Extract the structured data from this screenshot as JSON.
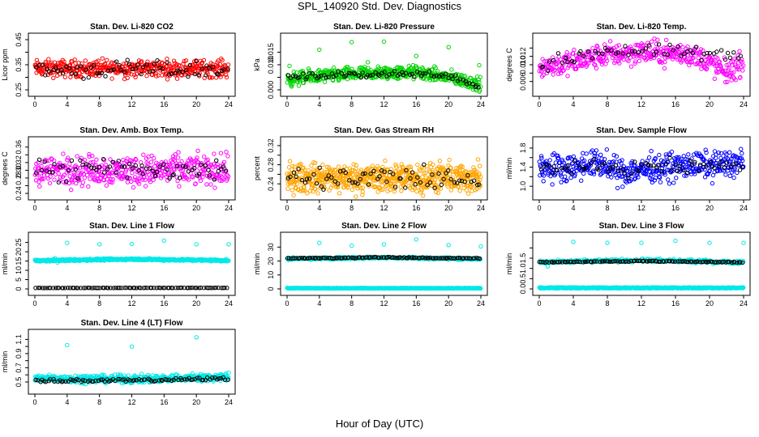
{
  "page": {
    "title": "SPL_140920  Std. Dev. Diagnostics",
    "xlabel": "Hour of Day (UTC)"
  },
  "colors": {
    "red": "#ff0000",
    "green": "#00d400",
    "magenta": "#ff00ff",
    "orange": "#ffa500",
    "blue": "#0000ff",
    "cyan": "#00e8e8",
    "black": "#000000"
  },
  "chart_data": [
    {
      "type": "scatter",
      "title": "Stan. Dev. Li-820 CO2",
      "ylabel": "Licor ppm",
      "xlim": [
        0,
        24
      ],
      "ylim": [
        0.25,
        0.45
      ],
      "xticks": [
        0,
        4,
        8,
        12,
        16,
        20,
        24
      ],
      "yticks": [
        {
          "v": 0.25,
          "label": "0.25"
        },
        {
          "v": 0.3,
          "label": ""
        },
        {
          "v": 0.35,
          "label": "0.35"
        },
        {
          "v": 0.4,
          "label": ""
        },
        {
          "v": 0.45,
          "label": "0.45"
        }
      ],
      "series": [
        {
          "color": "red",
          "count": 420,
          "style": "band",
          "center": [
            [
              0,
              0.335
            ],
            [
              24,
              0.335
            ]
          ],
          "spread": 0.05
        },
        {
          "color": "black",
          "count": 70,
          "style": "band",
          "center": [
            [
              0,
              0.33
            ],
            [
              24,
              0.33
            ]
          ],
          "spread": 0.05
        }
      ]
    },
    {
      "type": "scatter",
      "title": "Stan. Dev. Li-820 Pressure",
      "ylabel": "kPa",
      "xlim": [
        0,
        24
      ],
      "ylim": [
        0,
        0.02
      ],
      "xticks": [
        0,
        4,
        8,
        12,
        16,
        20,
        24
      ],
      "yticks": [
        {
          "v": 0.0,
          "label": "0.000"
        },
        {
          "v": 0.005,
          "label": ""
        },
        {
          "v": 0.01,
          "label": "0.010"
        },
        {
          "v": 0.015,
          "label": "0.015"
        }
      ],
      "series": [
        {
          "color": "green",
          "count": 500,
          "style": "band",
          "center": [
            [
              0,
              0.004
            ],
            [
              4,
              0.0055
            ],
            [
              10,
              0.0065
            ],
            [
              16,
              0.007
            ],
            [
              20,
              0.005
            ],
            [
              24,
              0.002
            ]
          ],
          "spread": 0.004
        },
        {
          "color": "black",
          "count": 80,
          "style": "band",
          "center": [
            [
              0,
              0.005
            ],
            [
              12,
              0.0065
            ],
            [
              20,
              0.006
            ],
            [
              24,
              0.001
            ]
          ],
          "spread": 0.002
        },
        {
          "color": "green",
          "style": "points",
          "points": [
            [
              0.3,
              0.0095
            ],
            [
              4,
              0.016
            ],
            [
              8,
              0.019
            ],
            [
              10,
              0.011
            ],
            [
              12,
              0.0192
            ],
            [
              16,
              0.0135
            ],
            [
              20,
              0.017
            ],
            [
              23.8,
              0.0098
            ]
          ]
        }
      ]
    },
    {
      "type": "scatter",
      "title": "Stan. Dev. Li-820 Temp.",
      "ylabel": "degrees C",
      "xlim": [
        0,
        24
      ],
      "ylim": [
        0.004,
        0.016
      ],
      "xticks": [
        0,
        4,
        8,
        12,
        16,
        20,
        24
      ],
      "yticks": [
        {
          "v": 0.006,
          "label": "0.006"
        },
        {
          "v": 0.008,
          "label": ""
        },
        {
          "v": 0.01,
          "label": "0.010"
        },
        {
          "v": 0.012,
          "label": "0.012"
        },
        {
          "v": 0.014,
          "label": ""
        }
      ],
      "series": [
        {
          "color": "magenta",
          "count": 430,
          "style": "band",
          "center": [
            [
              0,
              0.0095
            ],
            [
              4,
              0.0105
            ],
            [
              8,
              0.0125
            ],
            [
              12,
              0.013
            ],
            [
              18,
              0.0125
            ],
            [
              20,
              0.0105
            ],
            [
              22,
              0.008
            ],
            [
              24,
              0.0105
            ]
          ],
          "spread": 0.0042
        },
        {
          "color": "black",
          "count": 60,
          "style": "band",
          "center": [
            [
              0,
              0.0095
            ],
            [
              7,
              0.0135
            ],
            [
              12,
              0.013
            ],
            [
              17,
              0.013
            ],
            [
              21,
              0.012
            ],
            [
              24,
              0.012
            ]
          ],
          "spread": 0.0025
        }
      ]
    },
    {
      "type": "scatter",
      "title": "Stan. Dev. Amb. Box Temp.",
      "ylabel": "degrees C",
      "xlim": [
        0,
        24
      ],
      "ylim": [
        0.24,
        0.37
      ],
      "xticks": [
        0,
        4,
        8,
        12,
        16,
        20,
        24
      ],
      "yticks": [
        {
          "v": 0.24,
          "label": "0.24"
        },
        {
          "v": 0.26,
          "label": ""
        },
        {
          "v": 0.28,
          "label": "0.28"
        },
        {
          "v": 0.3,
          "label": "0.30"
        },
        {
          "v": 0.32,
          "label": "0.32"
        },
        {
          "v": 0.34,
          "label": ""
        },
        {
          "v": 0.36,
          "label": "0.36"
        }
      ],
      "series": [
        {
          "color": "magenta",
          "count": 420,
          "style": "band",
          "center": [
            [
              0,
              0.3
            ],
            [
              24,
              0.3
            ]
          ],
          "spread": 0.058
        },
        {
          "color": "black",
          "count": 70,
          "style": "band",
          "center": [
            [
              0,
              0.3
            ],
            [
              24,
              0.3
            ]
          ],
          "spread": 0.05
        }
      ]
    },
    {
      "type": "scatter",
      "title": "Stan. Dev. Gas Stream RH",
      "ylabel": "percent",
      "xlim": [
        0,
        24
      ],
      "ylim": [
        0.22,
        0.325
      ],
      "xticks": [
        0,
        4,
        8,
        12,
        16,
        20,
        24
      ],
      "yticks": [
        {
          "v": 0.24,
          "label": "0.24"
        },
        {
          "v": 0.26,
          "label": ""
        },
        {
          "v": 0.28,
          "label": "0.28"
        },
        {
          "v": 0.3,
          "label": ""
        },
        {
          "v": 0.32,
          "label": "0.32"
        }
      ],
      "series": [
        {
          "color": "orange",
          "count": 650,
          "style": "band",
          "center": [
            [
              0,
              0.252
            ],
            [
              24,
              0.252
            ]
          ],
          "spread": 0.045
        },
        {
          "color": "black",
          "count": 70,
          "style": "band",
          "center": [
            [
              0,
              0.25
            ],
            [
              24,
              0.25
            ]
          ],
          "spread": 0.04
        }
      ]
    },
    {
      "type": "scatter",
      "title": "Stan. Dev. Sample Flow",
      "ylabel": "ml/min",
      "xlim": [
        0,
        24
      ],
      "ylim": [
        0.85,
        1.9
      ],
      "xticks": [
        0,
        4,
        8,
        12,
        16,
        20,
        24
      ],
      "yticks": [
        {
          "v": 1.0,
          "label": "1.0"
        },
        {
          "v": 1.2,
          "label": ""
        },
        {
          "v": 1.4,
          "label": "1.4"
        },
        {
          "v": 1.6,
          "label": ""
        },
        {
          "v": 1.8,
          "label": "1.8"
        }
      ],
      "series": [
        {
          "color": "blue",
          "count": 460,
          "style": "band",
          "center": [
            [
              0,
              1.4
            ],
            [
              4,
              1.4
            ],
            [
              7,
              1.5
            ],
            [
              9,
              1.3
            ],
            [
              12,
              1.35
            ],
            [
              16,
              1.42
            ],
            [
              20,
              1.45
            ],
            [
              24,
              1.5
            ]
          ],
          "spread": 0.42
        },
        {
          "color": "black",
          "count": 70,
          "style": "band",
          "center": [
            [
              0,
              1.4
            ],
            [
              12,
              1.38
            ],
            [
              24,
              1.45
            ]
          ],
          "spread": 0.22
        }
      ]
    },
    {
      "type": "scatter",
      "title": "Stan. Dev. Line 1 Flow",
      "ylabel": "ml/min",
      "xlim": [
        0,
        24
      ],
      "ylim": [
        0,
        27
      ],
      "xticks": [
        0,
        4,
        8,
        12,
        16,
        20,
        24
      ],
      "yticks": [
        {
          "v": 0,
          "label": "0"
        },
        {
          "v": 5,
          "label": "5"
        },
        {
          "v": 10,
          "label": "10"
        },
        {
          "v": 15,
          "label": "15"
        },
        {
          "v": 20,
          "label": "20"
        },
        {
          "v": 25,
          "label": "25"
        }
      ],
      "series": [
        {
          "color": "cyan",
          "count": 500,
          "style": "band",
          "center": [
            [
              0,
              15.2
            ],
            [
              12,
              16
            ],
            [
              24,
              15.3
            ]
          ],
          "spread": 0.8
        },
        {
          "color": "black",
          "count": 90,
          "style": "line",
          "center": [
            [
              0,
              0.5
            ],
            [
              24,
              0.6
            ]
          ],
          "spread": 0.15
        },
        {
          "color": "cyan",
          "style": "points",
          "points": [
            [
              2.5,
              16.5
            ],
            [
              2.8,
              14.2
            ],
            [
              4,
              24.8
            ],
            [
              8,
              24
            ],
            [
              12,
              24.2
            ],
            [
              16,
              26
            ],
            [
              20,
              24
            ],
            [
              24,
              24
            ]
          ]
        }
      ]
    },
    {
      "type": "scatter",
      "title": "Stan. Dev. Line 2 Flow",
      "ylabel": "ml/min",
      "xlim": [
        0,
        24
      ],
      "ylim": [
        0,
        36
      ],
      "xticks": [
        0,
        4,
        8,
        12,
        16,
        20,
        24
      ],
      "yticks": [
        {
          "v": 0,
          "label": "0"
        },
        {
          "v": 10,
          "label": "10"
        },
        {
          "v": 20,
          "label": "20"
        },
        {
          "v": 30,
          "label": "30"
        }
      ],
      "series": [
        {
          "color": "cyan",
          "count": 300,
          "style": "band",
          "center": [
            [
              0,
              21.5
            ],
            [
              12,
              22.5
            ],
            [
              24,
              21.5
            ]
          ],
          "spread": 1.2
        },
        {
          "color": "black",
          "count": 110,
          "style": "line",
          "center": [
            [
              0,
              21.8
            ],
            [
              12,
              22.6
            ],
            [
              24,
              21.9
            ]
          ],
          "spread": 0.6
        },
        {
          "color": "cyan",
          "count": 500,
          "style": "line",
          "center": [
            [
              0,
              0.5
            ],
            [
              24,
              0.5
            ]
          ],
          "spread": 0.4
        },
        {
          "color": "cyan",
          "style": "points",
          "points": [
            [
              4,
              33
            ],
            [
              8,
              31
            ],
            [
              12,
              32
            ],
            [
              16,
              35.5
            ],
            [
              20,
              31.5
            ],
            [
              24,
              30.5
            ]
          ]
        }
      ]
    },
    {
      "type": "scatter",
      "title": "Stan. Dev. Line 3 Flow",
      "ylabel": "ml/min",
      "xlim": [
        0,
        24
      ],
      "ylim": [
        0,
        2.45
      ],
      "xticks": [
        0,
        4,
        8,
        12,
        16,
        20,
        24
      ],
      "yticks": [
        {
          "v": 0.0,
          "label": "0.0"
        },
        {
          "v": 0.5,
          "label": "0.5"
        },
        {
          "v": 1.0,
          "label": "1.0"
        },
        {
          "v": 1.5,
          "label": "1.5"
        },
        {
          "v": 2.0,
          "label": ""
        }
      ],
      "series": [
        {
          "color": "cyan",
          "count": 280,
          "style": "band",
          "center": [
            [
              0,
              1.3
            ],
            [
              12,
              1.4
            ],
            [
              24,
              1.3
            ]
          ],
          "spread": 0.12
        },
        {
          "color": "black",
          "count": 110,
          "style": "line",
          "center": [
            [
              0,
              1.3
            ],
            [
              12,
              1.36
            ],
            [
              24,
              1.3
            ]
          ],
          "spread": 0.04
        },
        {
          "color": "cyan",
          "count": 500,
          "style": "line",
          "center": [
            [
              0,
              0.05
            ],
            [
              24,
              0.05
            ]
          ],
          "spread": 0.05
        },
        {
          "color": "cyan",
          "style": "points",
          "points": [
            [
              4,
              2.3
            ],
            [
              8,
              2.25
            ],
            [
              12,
              2.25
            ],
            [
              16,
              2.35
            ],
            [
              20,
              2.25
            ],
            [
              24,
              2.25
            ],
            [
              1,
              1.1
            ]
          ]
        }
      ]
    },
    {
      "type": "scatter",
      "title": "Stan. Dev. Line 4 (LT) Flow",
      "ylabel": "ml/min",
      "xlim": [
        0,
        24
      ],
      "ylim": [
        0.42,
        1.15
      ],
      "xticks": [
        0,
        4,
        8,
        12,
        16,
        20,
        24
      ],
      "yticks": [
        {
          "v": 0.5,
          "label": "0.5"
        },
        {
          "v": 0.6,
          "label": ""
        },
        {
          "v": 0.7,
          "label": "0.7"
        },
        {
          "v": 0.8,
          "label": ""
        },
        {
          "v": 0.9,
          "label": "0.9"
        },
        {
          "v": 1.0,
          "label": ""
        },
        {
          "v": 1.1,
          "label": "1.1"
        }
      ],
      "series": [
        {
          "color": "cyan",
          "count": 500,
          "style": "band",
          "center": [
            [
              0,
              0.55
            ],
            [
              12,
              0.54
            ],
            [
              24,
              0.57
            ]
          ],
          "spread": 0.08
        },
        {
          "color": "black",
          "count": 90,
          "style": "line",
          "center": [
            [
              0,
              0.52
            ],
            [
              12,
              0.52
            ],
            [
              24,
              0.55
            ]
          ],
          "spread": 0.04
        },
        {
          "color": "cyan",
          "style": "points",
          "points": [
            [
              4,
              1.02
            ],
            [
              12,
              1.0
            ],
            [
              20,
              1.13
            ],
            [
              24,
              0.63
            ]
          ]
        }
      ]
    }
  ]
}
